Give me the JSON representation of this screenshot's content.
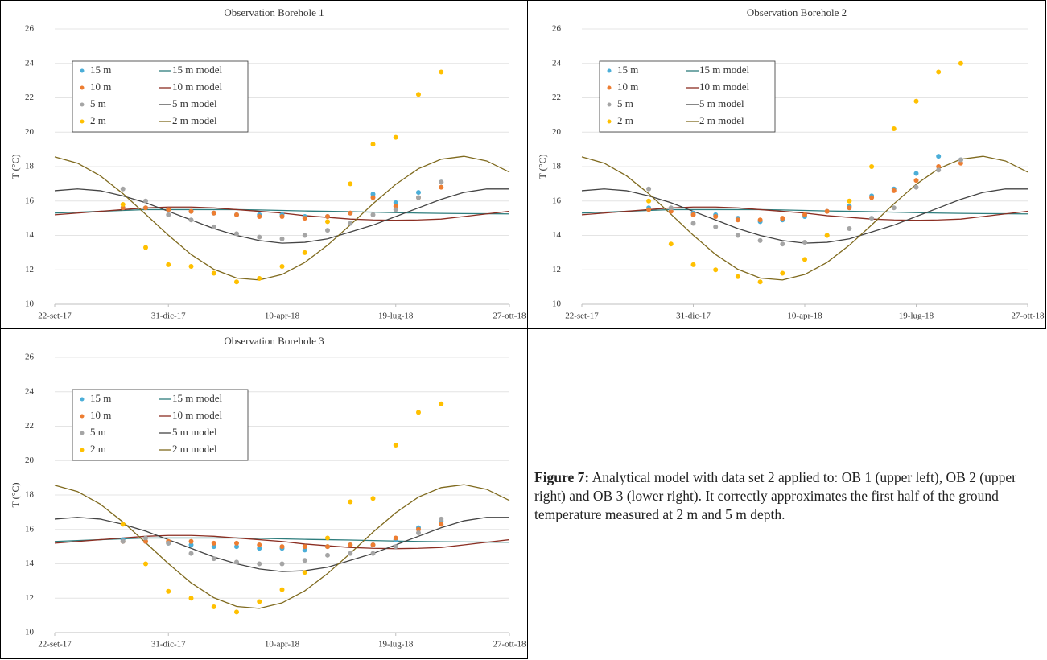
{
  "chart_data": [
    {
      "type": "line",
      "title": "Observation Borehole 1",
      "ylabel": "T (°C)",
      "x": [
        "2017-09-22",
        "2017-10-12",
        "2017-11-01",
        "2017-11-21",
        "2017-12-11",
        "2017-12-31",
        "2018-01-20",
        "2018-02-09",
        "2018-03-01",
        "2018-03-21",
        "2018-04-10",
        "2018-04-30",
        "2018-05-20",
        "2018-06-09",
        "2018-06-29",
        "2018-07-19",
        "2018-08-08",
        "2018-08-28",
        "2018-09-17",
        "2018-10-07",
        "2018-10-27"
      ],
      "xlim": [
        "2017-09-22",
        "2018-10-27"
      ],
      "xticks": [
        {
          "value": "2017-09-22",
          "label": "22-set-17"
        },
        {
          "value": "2017-12-31",
          "label": "31-dic-17"
        },
        {
          "value": "2018-04-10",
          "label": "10-apr-18"
        },
        {
          "value": "2018-07-19",
          "label": "19-lug-18"
        },
        {
          "value": "2018-10-27",
          "label": "27-ott-18"
        }
      ],
      "ylim": [
        10,
        26
      ],
      "yticks": [
        10,
        12,
        14,
        16,
        18,
        20,
        22,
        24,
        26
      ],
      "grid": true,
      "legend": "upper left",
      "series": [
        {
          "name": "15 m",
          "type": "scatter",
          "color": "#4baed8",
          "values": [
            null,
            null,
            null,
            15.6,
            15.6,
            15.5,
            15.4,
            15.3,
            15.2,
            15.2,
            15.2,
            15.1,
            15.1,
            15.3,
            16.4,
            15.9,
            16.5,
            17.1,
            null,
            null,
            null
          ]
        },
        {
          "name": "10 m",
          "type": "scatter",
          "color": "#ed7d31",
          "values": [
            null,
            null,
            null,
            15.6,
            15.6,
            15.5,
            15.4,
            15.3,
            15.2,
            15.1,
            15.1,
            15.0,
            15.1,
            15.3,
            16.2,
            15.7,
            16.2,
            16.8,
            null,
            null,
            null
          ]
        },
        {
          "name": "5 m",
          "type": "scatter",
          "color": "#a5a5a5",
          "values": [
            null,
            null,
            null,
            16.7,
            16.0,
            15.2,
            14.9,
            14.5,
            14.1,
            13.9,
            13.8,
            14.0,
            14.3,
            14.7,
            15.2,
            15.5,
            16.2,
            17.1,
            null,
            null,
            null
          ]
        },
        {
          "name": "2 m",
          "type": "scatter",
          "color": "#ffc000",
          "values": [
            null,
            null,
            null,
            15.8,
            13.3,
            12.3,
            12.2,
            11.8,
            11.3,
            11.5,
            12.2,
            13.0,
            14.8,
            17.0,
            19.3,
            19.7,
            22.2,
            23.5,
            null,
            null,
            null
          ]
        },
        {
          "name": "15 m model",
          "type": "line",
          "color": "#2e7d7d",
          "values": [
            15.3,
            15.35,
            15.4,
            15.45,
            15.5,
            15.5,
            15.5,
            15.5,
            15.5,
            15.48,
            15.45,
            15.42,
            15.4,
            15.38,
            15.35,
            15.32,
            15.3,
            15.28,
            15.27,
            15.26,
            15.25
          ]
        },
        {
          "name": "10 m model",
          "type": "line",
          "color": "#8b2e22",
          "values": [
            15.2,
            15.3,
            15.4,
            15.5,
            15.6,
            15.65,
            15.65,
            15.6,
            15.5,
            15.4,
            15.3,
            15.15,
            15.05,
            14.95,
            14.9,
            14.88,
            14.9,
            14.95,
            15.1,
            15.25,
            15.4
          ]
        },
        {
          "name": "5 m model",
          "type": "line",
          "color": "#444444",
          "values": [
            16.6,
            16.7,
            16.6,
            16.3,
            15.9,
            15.4,
            14.9,
            14.4,
            14.0,
            13.7,
            13.55,
            13.6,
            13.8,
            14.2,
            14.6,
            15.1,
            15.6,
            16.1,
            16.5,
            16.7,
            16.7
          ]
        },
        {
          "name": "2 m model",
          "type": "line",
          "color": "#7f6a1e",
          "values": [
            18.57,
            18.2,
            17.47,
            16.43,
            15.23,
            14.01,
            12.89,
            12.03,
            11.52,
            11.41,
            11.73,
            12.43,
            13.43,
            14.61,
            15.84,
            16.97,
            17.88,
            18.43,
            18.6,
            18.33,
            17.68
          ]
        }
      ]
    },
    {
      "type": "line",
      "title": "Observation Borehole 2",
      "ylabel": "T (°C)",
      "x": [
        "2017-09-22",
        "2017-10-12",
        "2017-11-01",
        "2017-11-21",
        "2017-12-11",
        "2017-12-31",
        "2018-01-20",
        "2018-02-09",
        "2018-03-01",
        "2018-03-21",
        "2018-04-10",
        "2018-04-30",
        "2018-05-20",
        "2018-06-09",
        "2018-06-29",
        "2018-07-19",
        "2018-08-08",
        "2018-08-28",
        "2018-09-17",
        "2018-10-07",
        "2018-10-27"
      ],
      "xlim": [
        "2017-09-22",
        "2018-10-27"
      ],
      "xticks": [
        {
          "value": "2017-09-22",
          "label": "22-set-17"
        },
        {
          "value": "2017-12-31",
          "label": "31-dic-17"
        },
        {
          "value": "2018-04-10",
          "label": "10-apr-18"
        },
        {
          "value": "2018-07-19",
          "label": "19-lug-18"
        },
        {
          "value": "2018-10-27",
          "label": "27-ott-18"
        }
      ],
      "ylim": [
        10,
        26
      ],
      "yticks": [
        10,
        12,
        14,
        16,
        18,
        20,
        22,
        24,
        26
      ],
      "grid": true,
      "legend": "upper left",
      "series": [
        {
          "name": "15 m",
          "type": "scatter",
          "color": "#4baed8",
          "values": [
            null,
            null,
            null,
            15.6,
            15.5,
            15.3,
            15.2,
            15.0,
            14.8,
            14.9,
            15.1,
            15.4,
            15.7,
            16.3,
            16.7,
            17.6,
            18.6,
            18.4,
            null,
            null,
            null
          ]
        },
        {
          "name": "10 m",
          "type": "scatter",
          "color": "#ed7d31",
          "values": [
            null,
            null,
            null,
            15.5,
            15.4,
            15.2,
            15.1,
            14.9,
            14.9,
            15.0,
            15.2,
            15.4,
            15.6,
            16.2,
            16.6,
            17.2,
            18.0,
            18.2,
            null,
            null,
            null
          ]
        },
        {
          "name": "5 m",
          "type": "scatter",
          "color": "#a5a5a5",
          "values": [
            null,
            null,
            null,
            16.7,
            15.6,
            14.7,
            14.5,
            14.0,
            13.7,
            13.5,
            13.6,
            14.0,
            14.4,
            15.0,
            15.6,
            16.8,
            17.8,
            18.4,
            null,
            null,
            null
          ]
        },
        {
          "name": "2 m",
          "type": "scatter",
          "color": "#ffc000",
          "values": [
            null,
            null,
            null,
            16.0,
            13.5,
            12.3,
            12.0,
            11.6,
            11.3,
            11.8,
            12.6,
            14.0,
            16.0,
            18.0,
            20.2,
            21.8,
            23.5,
            24.0,
            null,
            null,
            null
          ]
        },
        {
          "name": "15 m model",
          "type": "line",
          "color": "#2e7d7d",
          "values": [
            15.3,
            15.35,
            15.4,
            15.45,
            15.5,
            15.5,
            15.5,
            15.5,
            15.5,
            15.48,
            15.45,
            15.42,
            15.4,
            15.38,
            15.35,
            15.32,
            15.3,
            15.28,
            15.27,
            15.26,
            15.25
          ]
        },
        {
          "name": "10 m model",
          "type": "line",
          "color": "#8b2e22",
          "values": [
            15.2,
            15.3,
            15.4,
            15.5,
            15.6,
            15.65,
            15.65,
            15.6,
            15.5,
            15.4,
            15.3,
            15.15,
            15.05,
            14.95,
            14.9,
            14.88,
            14.9,
            14.95,
            15.1,
            15.25,
            15.4
          ]
        },
        {
          "name": "5 m model",
          "type": "line",
          "color": "#444444",
          "values": [
            16.6,
            16.7,
            16.6,
            16.3,
            15.9,
            15.4,
            14.9,
            14.4,
            14.0,
            13.7,
            13.55,
            13.6,
            13.8,
            14.2,
            14.6,
            15.1,
            15.6,
            16.1,
            16.5,
            16.7,
            16.7
          ]
        },
        {
          "name": "2 m model",
          "type": "line",
          "color": "#7f6a1e",
          "values": [
            18.57,
            18.2,
            17.47,
            16.43,
            15.23,
            14.01,
            12.89,
            12.03,
            11.52,
            11.41,
            11.73,
            12.43,
            13.43,
            14.61,
            15.84,
            16.97,
            17.88,
            18.43,
            18.6,
            18.33,
            17.68
          ]
        }
      ]
    },
    {
      "type": "line",
      "title": "Observation Borehole 3",
      "ylabel": "T (°C)",
      "x": [
        "2017-09-22",
        "2017-10-12",
        "2017-11-01",
        "2017-11-21",
        "2017-12-11",
        "2017-12-31",
        "2018-01-20",
        "2018-02-09",
        "2018-03-01",
        "2018-03-21",
        "2018-04-10",
        "2018-04-30",
        "2018-05-20",
        "2018-06-09",
        "2018-06-29",
        "2018-07-19",
        "2018-08-08",
        "2018-08-28",
        "2018-09-17",
        "2018-10-07",
        "2018-10-27"
      ],
      "xlim": [
        "2017-09-22",
        "2018-10-27"
      ],
      "xticks": [
        {
          "value": "2017-09-22",
          "label": "22-set-17"
        },
        {
          "value": "2017-12-31",
          "label": "31-dic-17"
        },
        {
          "value": "2018-04-10",
          "label": "10-apr-18"
        },
        {
          "value": "2018-07-19",
          "label": "19-lug-18"
        },
        {
          "value": "2018-10-27",
          "label": "27-ott-18"
        }
      ],
      "ylim": [
        10,
        26
      ],
      "yticks": [
        10,
        12,
        14,
        16,
        18,
        20,
        22,
        24,
        26
      ],
      "grid": true,
      "legend": "upper left",
      "series": [
        {
          "name": "15 m",
          "type": "scatter",
          "color": "#4baed8",
          "values": [
            null,
            null,
            null,
            15.4,
            15.3,
            15.2,
            15.1,
            15.0,
            15.0,
            14.9,
            14.9,
            14.8,
            15.0,
            15.1,
            15.1,
            15.4,
            16.1,
            16.5,
            null,
            null,
            null
          ]
        },
        {
          "name": "10 m",
          "type": "scatter",
          "color": "#ed7d31",
          "values": [
            null,
            null,
            null,
            15.3,
            15.3,
            15.3,
            15.3,
            15.2,
            15.2,
            15.1,
            15.0,
            15.0,
            15.0,
            15.1,
            15.1,
            15.5,
            16.0,
            16.3,
            null,
            null,
            null
          ]
        },
        {
          "name": "5 m",
          "type": "scatter",
          "color": "#a5a5a5",
          "values": [
            null,
            null,
            null,
            15.3,
            15.5,
            15.2,
            14.6,
            14.3,
            14.1,
            14.0,
            14.0,
            14.2,
            14.5,
            14.6,
            14.6,
            15.0,
            15.8,
            16.6,
            null,
            null,
            null
          ]
        },
        {
          "name": "2 m",
          "type": "scatter",
          "color": "#ffc000",
          "values": [
            null,
            null,
            null,
            16.3,
            14.0,
            12.4,
            12.0,
            11.5,
            11.2,
            11.8,
            12.5,
            13.5,
            15.5,
            17.6,
            17.8,
            20.9,
            22.8,
            23.3,
            null,
            null,
            null
          ]
        },
        {
          "name": "15 m model",
          "type": "line",
          "color": "#2e7d7d",
          "values": [
            15.3,
            15.35,
            15.4,
            15.45,
            15.5,
            15.5,
            15.5,
            15.5,
            15.5,
            15.48,
            15.45,
            15.42,
            15.4,
            15.38,
            15.35,
            15.32,
            15.3,
            15.28,
            15.27,
            15.26,
            15.25
          ]
        },
        {
          "name": "10 m model",
          "type": "line",
          "color": "#8b2e22",
          "values": [
            15.2,
            15.3,
            15.4,
            15.5,
            15.6,
            15.65,
            15.65,
            15.6,
            15.5,
            15.4,
            15.3,
            15.15,
            15.05,
            14.95,
            14.9,
            14.88,
            14.9,
            14.95,
            15.1,
            15.25,
            15.4
          ]
        },
        {
          "name": "5 m model",
          "type": "line",
          "color": "#444444",
          "values": [
            16.6,
            16.7,
            16.6,
            16.3,
            15.9,
            15.4,
            14.9,
            14.4,
            14.0,
            13.7,
            13.55,
            13.6,
            13.8,
            14.2,
            14.6,
            15.1,
            15.6,
            16.1,
            16.5,
            16.7,
            16.7
          ]
        },
        {
          "name": "2 m model",
          "type": "line",
          "color": "#7f6a1e",
          "values": [
            18.57,
            18.2,
            17.47,
            16.43,
            15.23,
            14.01,
            12.89,
            12.03,
            11.52,
            11.41,
            11.73,
            12.43,
            13.43,
            14.61,
            15.84,
            16.97,
            17.88,
            18.43,
            18.6,
            18.33,
            17.68
          ]
        }
      ]
    }
  ],
  "caption": {
    "label": "Figure 7:",
    "text": "Analytical model with data set 2 applied to: OB 1 (upper left), OB 2 (upper right) and OB 3 (lower right). It correctly approximates the first half of the ground temperature measured at 2 m and 5 m depth."
  }
}
